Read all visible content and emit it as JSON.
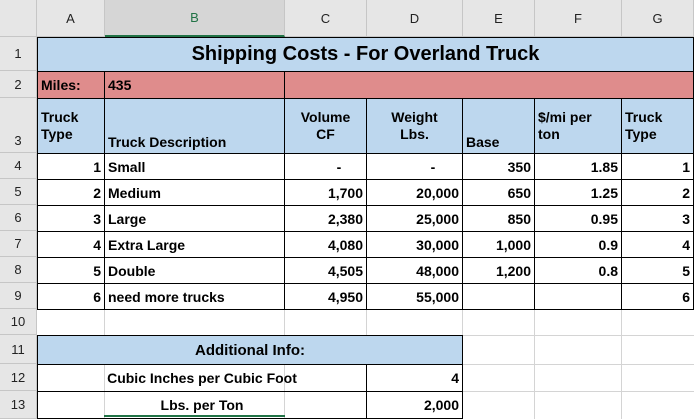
{
  "spreadsheet": {
    "columns": [
      "A",
      "B",
      "C",
      "D",
      "E",
      "F",
      "G"
    ],
    "rows": [
      "1",
      "2",
      "3",
      "4",
      "5",
      "6",
      "7",
      "8",
      "9",
      "10",
      "11",
      "12",
      "13"
    ],
    "selected_column": "B"
  },
  "title": "Shipping Costs - For Overland Truck",
  "miles": {
    "label": "Miles:",
    "value": "435"
  },
  "headers": {
    "truck_type_1": "Truck",
    "truck_type_2": "Type",
    "description": "Truck Description",
    "volume_1": "Volume",
    "volume_2": "CF",
    "weight_1": "Weight",
    "weight_2": "Lbs.",
    "base": "Base",
    "permi_1": "$/mi per",
    "permi_2": "ton",
    "truck_type_g_1": "Truck",
    "truck_type_g_2": "Type"
  },
  "trucks": [
    {
      "type": "1",
      "description": "Small",
      "volume": "-",
      "weight": "-",
      "base": "350",
      "per_mile": "1.85",
      "type_g": "1"
    },
    {
      "type": "2",
      "description": "Medium",
      "volume": "1,700",
      "weight": "20,000",
      "base": "650",
      "per_mile": "1.25",
      "type_g": "2"
    },
    {
      "type": "3",
      "description": "Large",
      "volume": "2,380",
      "weight": "25,000",
      "base": "850",
      "per_mile": "0.95",
      "type_g": "3"
    },
    {
      "type": "4",
      "description": "Extra Large",
      "volume": "4,080",
      "weight": "30,000",
      "base": "1,000",
      "per_mile": "0.9",
      "type_g": "4"
    },
    {
      "type": "5",
      "description": "Double",
      "volume": "4,505",
      "weight": "48,000",
      "base": "1,200",
      "per_mile": "0.8",
      "type_g": "5"
    },
    {
      "type": "6",
      "description": "need more trucks",
      "volume": "4,950",
      "weight": "55,000",
      "base": "",
      "per_mile": "",
      "type_g": "6"
    }
  ],
  "additional": {
    "title": "Additional Info:",
    "items": [
      {
        "label": "Cubic Inches per Cubic Foot",
        "value": "4"
      },
      {
        "label": "Lbs. per Ton",
        "value": "2,000"
      }
    ]
  },
  "colors": {
    "header_blue": "#bdd7ee",
    "miles_pink": "#df8c8c",
    "excel_green": "#217346"
  }
}
